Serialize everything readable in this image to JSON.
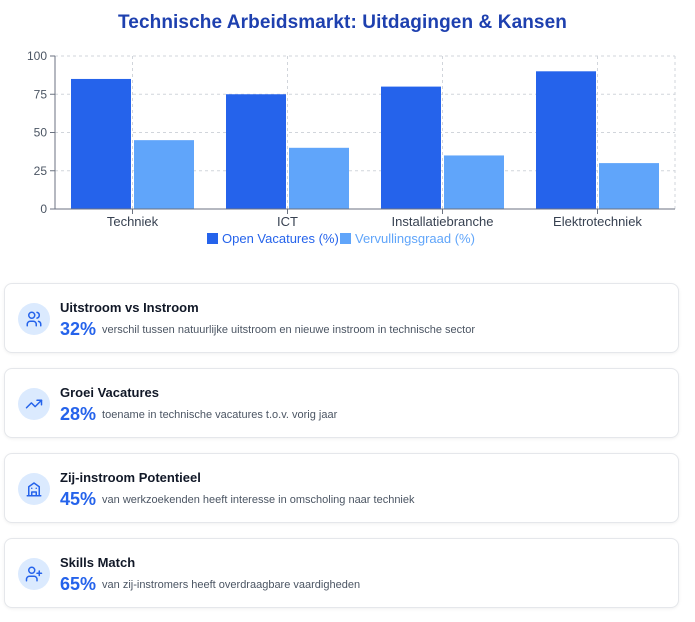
{
  "title": "Technische Arbeidsmarkt: Uitdagingen & Kansen",
  "chart_data": {
    "type": "bar",
    "categories": [
      "Techniek",
      "ICT",
      "Installatiebranche",
      "Elektrotechniek"
    ],
    "series": [
      {
        "name": "Open Vacatures (%)",
        "values": [
          85,
          75,
          80,
          90
        ],
        "color": "#2563eb"
      },
      {
        "name": "Vervullingsgraad (%)",
        "values": [
          45,
          40,
          35,
          30
        ],
        "color": "#60a5fa"
      }
    ],
    "yticks": [
      0,
      25,
      50,
      75,
      100
    ],
    "ylim": [
      0,
      100
    ],
    "grid": true,
    "legend": "bottom"
  },
  "cards": [
    {
      "icon": "users-icon",
      "title": "Uitstroom vs Instroom",
      "value": "32%",
      "description": "verschil tussen natuurlijke uitstroom en nieuwe instroom in technische sector"
    },
    {
      "icon": "trending-up-icon",
      "title": "Groei Vacatures",
      "value": "28%",
      "description": "toename in technische vacatures t.o.v. vorig jaar"
    },
    {
      "icon": "building-icon",
      "title": "Zij-instroom Potentieel",
      "value": "45%",
      "description": "van werkzoekenden heeft interesse in omscholing naar techniek"
    },
    {
      "icon": "user-plus-icon",
      "title": "Skills Match",
      "value": "65%",
      "description": "van zij-instromers heeft overdraagbare vaardigheden"
    }
  ],
  "colors": {
    "accent": "#2563eb",
    "accent_light": "#60a5fa",
    "title": "#1e40af",
    "icon_bg": "#dbeafe"
  }
}
